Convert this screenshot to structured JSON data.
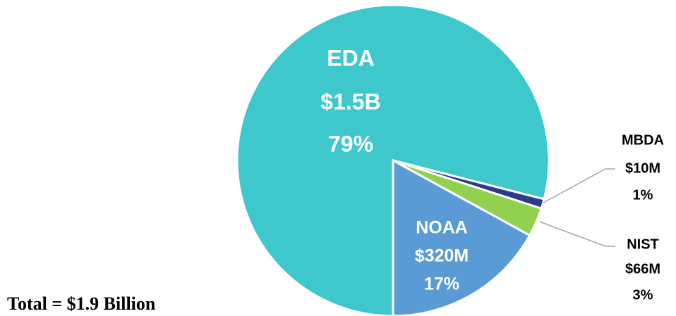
{
  "chart_data": {
    "type": "pie",
    "categories": [
      "EDA",
      "MBDA",
      "NIST",
      "NOAA"
    ],
    "amounts": [
      "$1.5B",
      "$10M",
      "$66M",
      "$320M"
    ],
    "values": [
      79,
      1,
      3,
      17
    ],
    "value_labels": [
      "79%",
      "1%",
      "3%",
      "17%"
    ],
    "colors": [
      "#3ec8cc",
      "#2e3a87",
      "#92d050",
      "#5b9bd5"
    ],
    "annotation": "Total = $1.9 Billion"
  }
}
